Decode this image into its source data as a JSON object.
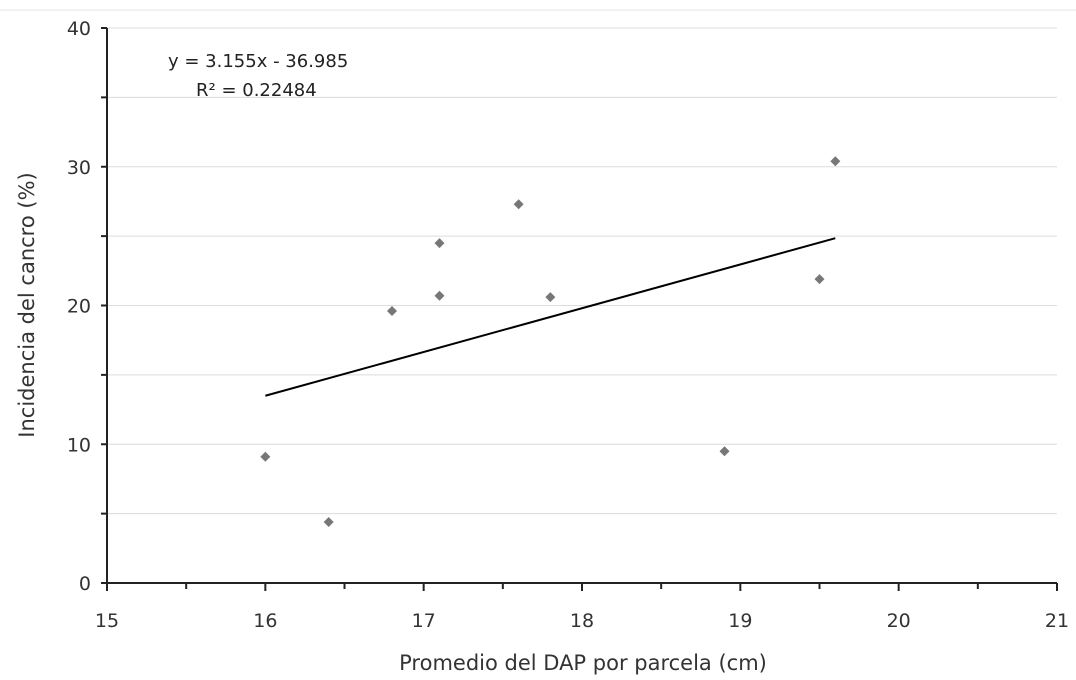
{
  "chart_data": {
    "type": "scatter",
    "xlabel": "Promedio del DAP por parcela (cm)",
    "ylabel": "Incidencia del cancro (%)",
    "xlim": [
      15,
      21
    ],
    "ylim": [
      0,
      40
    ],
    "x_ticks": [
      "15",
      "16",
      "17",
      "18",
      "19",
      "20",
      "21"
    ],
    "y_ticks": [
      "0",
      "10",
      "20",
      "30",
      "40"
    ],
    "grid": "horizontal",
    "marker_color": "#777777",
    "trendline_color": "#000000",
    "series": [
      {
        "points": [
          {
            "x": 16.0,
            "y": 9.1
          },
          {
            "x": 16.4,
            "y": 4.4
          },
          {
            "x": 16.8,
            "y": 19.6
          },
          {
            "x": 17.1,
            "y": 24.5
          },
          {
            "x": 17.1,
            "y": 20.7
          },
          {
            "x": 17.6,
            "y": 27.3
          },
          {
            "x": 17.8,
            "y": 20.6
          },
          {
            "x": 18.9,
            "y": 9.5
          },
          {
            "x": 19.5,
            "y": 21.9
          },
          {
            "x": 19.6,
            "y": 30.4
          }
        ]
      }
    ],
    "trendline": {
      "slope": 3.155,
      "intercept": -36.985,
      "x_range": [
        16.0,
        19.6
      ],
      "equation": "y = 3.155x - 36.985",
      "r2_label": "R² = 0.22484"
    }
  }
}
